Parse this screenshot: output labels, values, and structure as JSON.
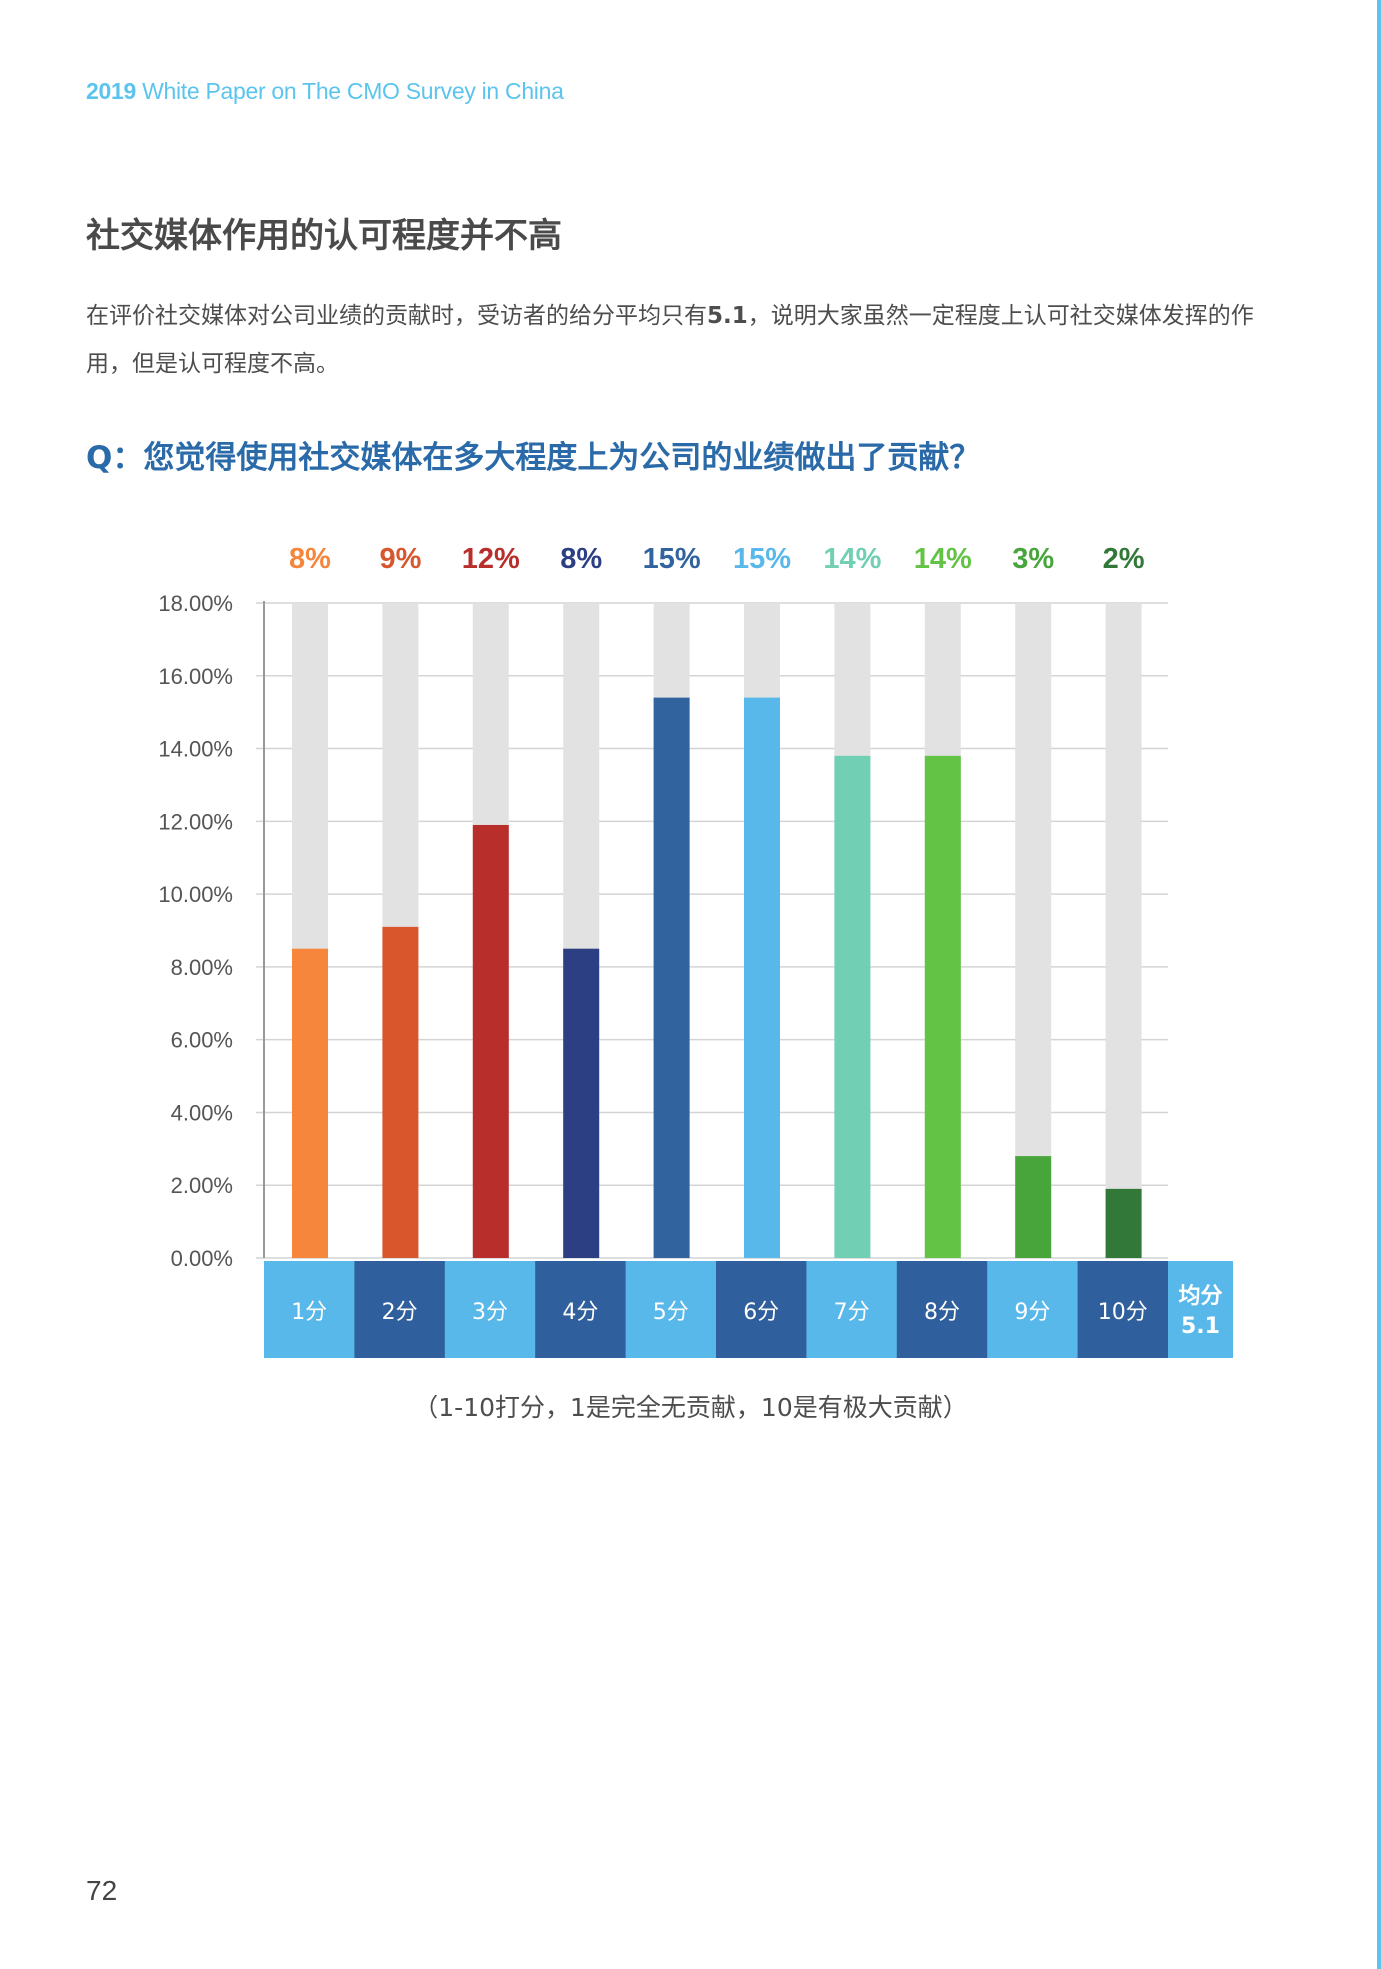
{
  "header": {
    "year": "2019",
    "title": "White Paper on The CMO Survey in China"
  },
  "section_title": "社交媒体作用的认可程度并不高",
  "body": {
    "text_before": "在评价社交媒体对公司业绩的贡献时，受访者的给分平均只有",
    "avg": "5.1",
    "text_after": "，说明大家虽然一定程度上认可社交媒体发挥的作用，但是认可程度不高。"
  },
  "question": "Q：您觉得使用社交媒体在多大程度上为公司的业绩做出了贡献？",
  "chart_data": {
    "type": "bar",
    "categories": [
      "1分",
      "2分",
      "3分",
      "4分",
      "5分",
      "6分",
      "7分",
      "8分",
      "9分",
      "10分"
    ],
    "values": [
      8.5,
      9.1,
      11.9,
      8.5,
      15.4,
      15.4,
      13.8,
      13.8,
      2.8,
      1.9
    ],
    "data_labels": [
      "8%",
      "9%",
      "12%",
      "8%",
      "15%",
      "15%",
      "14%",
      "14%",
      "3%",
      "2%"
    ],
    "y_ticks": [
      "0.00%",
      "2.00%",
      "4.00%",
      "6.00%",
      "8.00%",
      "10.00%",
      "12.00%",
      "14.00%",
      "16.00%",
      "18.00%"
    ],
    "ylim": [
      0,
      18
    ],
    "grid": true,
    "colors": [
      "#f5863b",
      "#d9562d",
      "#b72e2b",
      "#2b3f82",
      "#31649f",
      "#59b8ea",
      "#71cfb3",
      "#62c345",
      "#47a53c",
      "#327838"
    ],
    "category_bg_colors": [
      "#59b8ea",
      "#2f5f9c",
      "#59b8ea",
      "#2f5f9c",
      "#59b8ea",
      "#2f5f9c",
      "#59b8ea",
      "#2f5f9c",
      "#59b8ea",
      "#2f5f9c"
    ],
    "track_color": "#e2e2e2",
    "average": {
      "label": "均分",
      "value": "5.1"
    },
    "average_bg_color": "#59b8ea",
    "xlabel": "",
    "ylabel": ""
  },
  "caption": "（1-10打分，1是完全无贡献，10是有极大贡献）",
  "page_number": "72"
}
